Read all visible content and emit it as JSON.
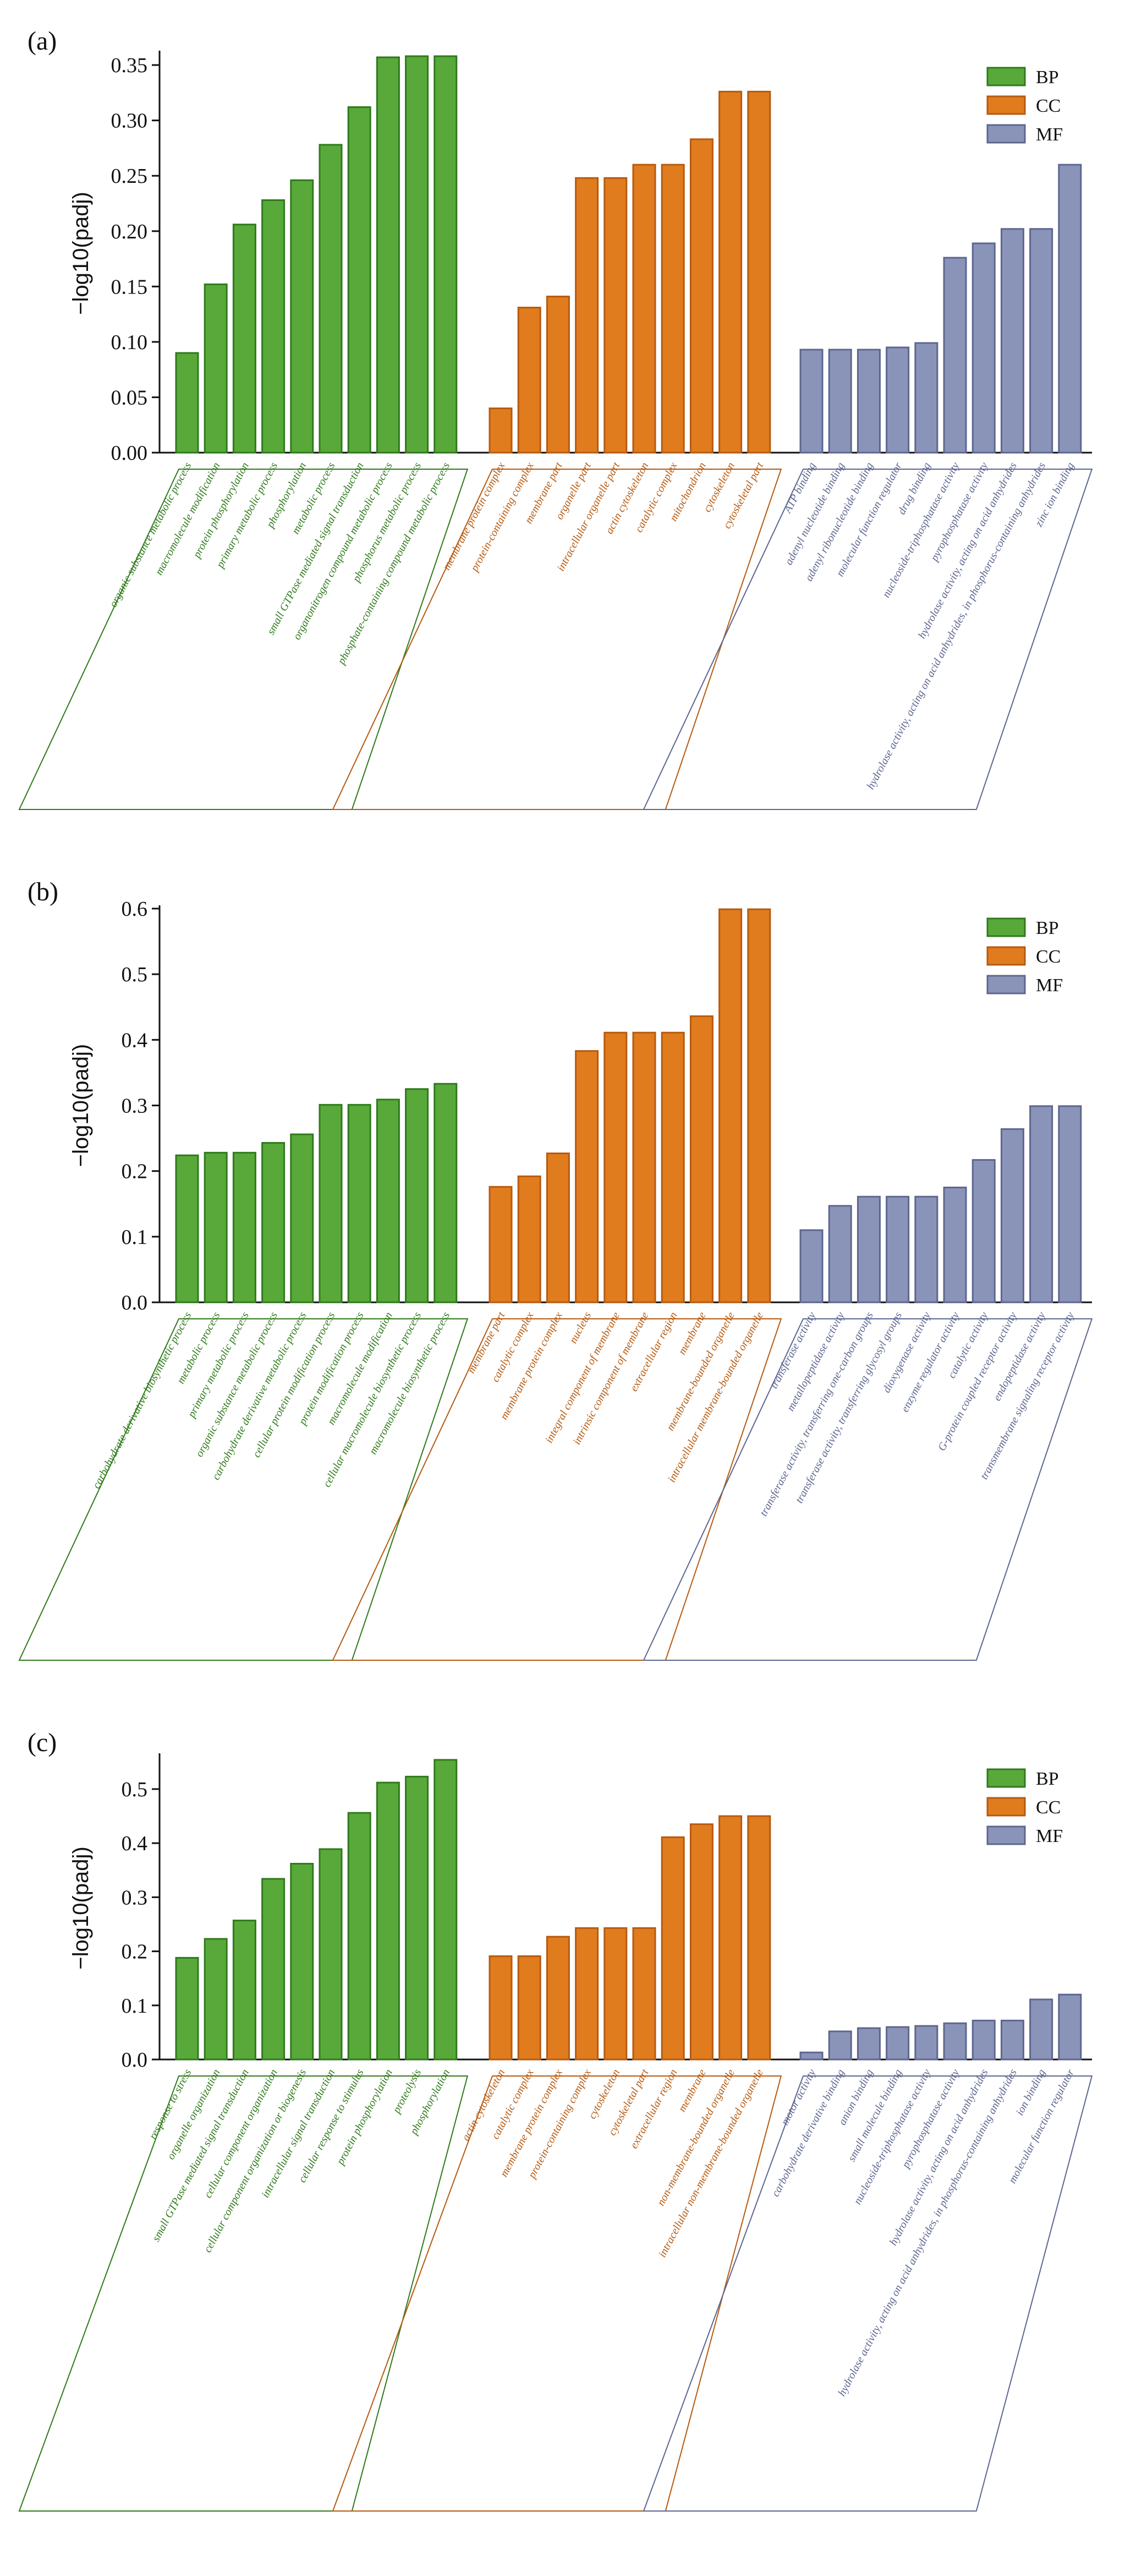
{
  "colors": {
    "BP": {
      "fill": "#58a93a",
      "stroke": "#2f7a1b"
    },
    "CC": {
      "fill": "#e07c1e",
      "stroke": "#b65a10"
    },
    "MF": {
      "fill": "#8a94b8",
      "stroke": "#5d6690"
    }
  },
  "chart_data": [
    {
      "type": "bar",
      "panel": "(a)",
      "ylabel": "−log10(padj)",
      "ylim": [
        0,
        0.36
      ],
      "yticks": [
        0.0,
        0.05,
        0.1,
        0.15,
        0.2,
        0.25,
        0.3,
        0.35
      ],
      "ytick_labels": [
        "0.00",
        "0.05",
        "0.10",
        "0.15",
        "0.20",
        "0.25",
        "0.30",
        "0.35"
      ],
      "legend": [
        "BP",
        "CC",
        "MF"
      ],
      "groups": [
        {
          "name": "BP",
          "categories": [
            "organic substance metabolic process",
            "macromolecule modification",
            "protein phosphorylation",
            "primary metabolic process",
            "phosphorylation",
            "metabolic process",
            "small GTPase mediated signal transduction",
            "organonitrogen compound metabolic process",
            "phosphorus metabolic process",
            "phosphate-containing compound metabolic process"
          ],
          "values": [
            0.09,
            0.152,
            0.206,
            0.228,
            0.246,
            0.278,
            0.312,
            0.357,
            0.358,
            0.358
          ]
        },
        {
          "name": "CC",
          "categories": [
            "membrane protein complex",
            "protein-containing complex",
            "membrane part",
            "organelle part",
            "intracellular organelle part",
            "actin cytoskeleton",
            "catalytic complex",
            "mitochondrion",
            "cytoskeleton",
            "cytoskeletal part"
          ],
          "values": [
            0.04,
            0.131,
            0.141,
            0.248,
            0.248,
            0.26,
            0.26,
            0.283,
            0.326,
            0.326
          ]
        },
        {
          "name": "MF",
          "categories": [
            "ATP binding",
            "adenyl nucleotide binding",
            "adenyl ribonucleotide binding",
            "molecular function regulator",
            "drug binding",
            "nucleoside-triphosphatase activity",
            "pyrophosphatase activity",
            "hydrolase activity, acting on acid anhydrides",
            "hydrolase activity, acting on acid anhydrides, in phosphorus-containing anhydrides",
            "zinc ion binding"
          ],
          "values": [
            0.093,
            0.093,
            0.093,
            0.095,
            0.099,
            0.176,
            0.189,
            0.202,
            0.202,
            0.26
          ]
        }
      ]
    },
    {
      "type": "bar",
      "panel": "(b)",
      "ylabel": "−log10(padj)",
      "ylim": [
        0,
        0.6
      ],
      "yticks": [
        0.0,
        0.1,
        0.2,
        0.3,
        0.4,
        0.5,
        0.6
      ],
      "ytick_labels": [
        "0.0",
        "0.1",
        "0.2",
        "0.3",
        "0.4",
        "0.5",
        "0.6"
      ],
      "legend": [
        "BP",
        "CC",
        "MF"
      ],
      "groups": [
        {
          "name": "BP",
          "categories": [
            "carbohydrate derivative biosynthetic process",
            "metabolic process",
            "primary metabolic process",
            "organic substance metabolic process",
            "carbohydrate derivative metabolic process",
            "cellular protein modification process",
            "protein modification process",
            "macromolecule modification",
            "cellular macromolecule biosynthetic process",
            "macromolecule biosynthetic process"
          ],
          "values": [
            0.224,
            0.228,
            0.228,
            0.243,
            0.256,
            0.301,
            0.301,
            0.309,
            0.325,
            0.333
          ]
        },
        {
          "name": "CC",
          "categories": [
            "membrane part",
            "catalytic complex",
            "membrane protein complex",
            "nucleus",
            "integral component of membrane",
            "intrinsic component of membrane",
            "extracellular region",
            "membrane",
            "membrane-bounded organelle",
            "intracellular membrane-bounded organelle"
          ],
          "values": [
            0.176,
            0.192,
            0.227,
            0.383,
            0.411,
            0.411,
            0.411,
            0.436,
            0.599,
            0.599
          ]
        },
        {
          "name": "MF",
          "categories": [
            "transferase activity",
            "metallopeptidase activity",
            "transferase activity, transferring one-carbon groups",
            "transferase activity, transferring glycosyl groups",
            "dioxygenase activity",
            "enzyme regulator activity",
            "catalytic activity",
            "G-protein coupled receptor activity",
            "endopeptidase activity",
            "transmembrane signaling receptor activity"
          ],
          "values": [
            0.11,
            0.147,
            0.161,
            0.161,
            0.161,
            0.175,
            0.217,
            0.264,
            0.299,
            0.299
          ]
        }
      ]
    },
    {
      "type": "bar",
      "panel": "(c)",
      "ylabel": "−log10(padj)",
      "ylim": [
        0,
        0.56
      ],
      "yticks": [
        0.0,
        0.1,
        0.2,
        0.3,
        0.4,
        0.5
      ],
      "ytick_labels": [
        "0.0",
        "0.1",
        "0.2",
        "0.3",
        "0.4",
        "0.5"
      ],
      "legend": [
        "BP",
        "CC",
        "MF"
      ],
      "groups": [
        {
          "name": "BP",
          "categories": [
            "response to stress",
            "organelle organization",
            "small GTPase mediated signal transduction",
            "cellular component organization",
            "cellular component organization or biogenesis",
            "intracellular signal transduction",
            "cellular response to stimulus",
            "protein phosphorylation",
            "proteolysis",
            "phosphorylation"
          ],
          "values": [
            0.188,
            0.223,
            0.257,
            0.334,
            0.362,
            0.389,
            0.456,
            0.512,
            0.523,
            0.554
          ]
        },
        {
          "name": "CC",
          "categories": [
            "actin cytoskeleton",
            "catalytic complex",
            "membrane protein complex",
            "protein-containing complex",
            "cytoskeleton",
            "cytoskeletal part",
            "extracellular region",
            "membrane",
            "non-membrane-bounded organelle",
            "intracellular non-membrane-bounded organelle"
          ],
          "values": [
            0.191,
            0.191,
            0.227,
            0.243,
            0.243,
            0.243,
            0.411,
            0.435,
            0.45,
            0.45
          ]
        },
        {
          "name": "MF",
          "categories": [
            "motor activity",
            "carbohydrate derivative binding",
            "anion binding",
            "small molecule binding",
            "nucleoside-triphosphatase activity",
            "pyrophosphatase activity",
            "hydrolase activity, acting on acid anhydrides",
            "hydrolase activity, acting on acid anhydrides, in phosphorus-containing anhydrides",
            "ion binding",
            "molecular function regulator"
          ],
          "values": [
            0.013,
            0.052,
            0.058,
            0.06,
            0.062,
            0.067,
            0.072,
            0.072,
            0.111,
            0.12
          ]
        }
      ]
    }
  ]
}
